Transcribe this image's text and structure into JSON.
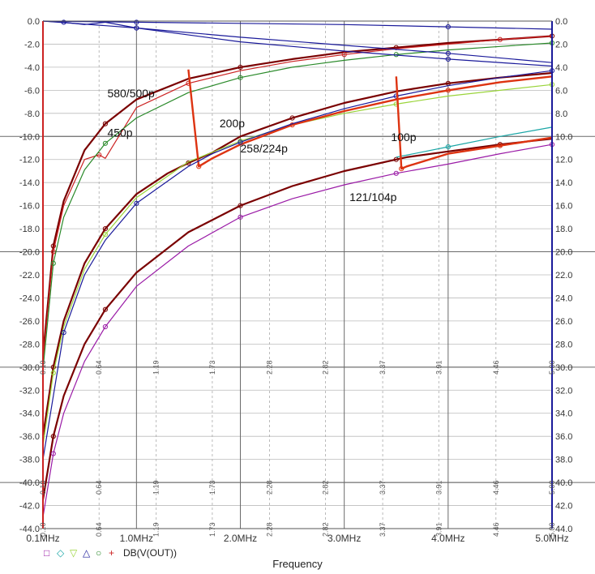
{
  "chart_data": {
    "type": "line",
    "title": "",
    "xlabel": "Frequency",
    "ylabel": "",
    "xlim": [
      0.1,
      5.0
    ],
    "ylim": [
      -44,
      0
    ],
    "x_ticks": [
      "0.1MHz",
      "1.0MHz",
      "2.0MHz",
      "3.0MHz",
      "4.0MHz",
      "5.0MHz"
    ],
    "x_minor_ticks": [
      "0.10",
      "0.64",
      "1.19",
      "1.73",
      "2.28",
      "2.82",
      "3.37",
      "3.91",
      "4.46",
      "5.00"
    ],
    "y_ticks_left": [
      "0.0",
      "-2.0",
      "-4.0",
      "-6.0",
      "-8.0",
      "-10.0",
      "-12.0",
      "-14.0",
      "-16.0",
      "-18.0",
      "-20.0",
      "-22.0",
      "-24.0",
      "-26.0",
      "-28.0",
      "-30.0",
      "-32.0",
      "-34.0",
      "-36.0",
      "-38.0",
      "-40.0",
      "-42.0",
      "-44.0"
    ],
    "y_ticks_right": [
      "0.0",
      "2.0",
      "4.0",
      "6.0",
      "8.0",
      "10.0",
      "12.0",
      "14.0",
      "16.0",
      "18.0",
      "20.0",
      "22.0",
      "24.0",
      "26.0",
      "28.0",
      "30.0",
      "32.0",
      "34.0",
      "36.0",
      "38.0",
      "40.0",
      "42.0",
      "44.0"
    ],
    "legend": {
      "markers": [
        "□",
        "◇",
        "▽",
        "△",
        "○",
        "+"
      ],
      "marker_colors": [
        "#9a1aa6",
        "#1aa6a6",
        "#9ad43a",
        "#1a1a9a",
        "#2a8a2a",
        "#cc2222"
      ],
      "label": "DB(V(OUT))"
    },
    "annotations": [
      {
        "text": "580/500p",
        "x": 0.72,
        "y": -6.6
      },
      {
        "text": "450p",
        "x": 0.72,
        "y": -10.0
      },
      {
        "text": "200p",
        "x": 1.8,
        "y": -9.2
      },
      {
        "text": "258/224p",
        "x": 2.0,
        "y": -11.4
      },
      {
        "text": "100p",
        "x": 3.45,
        "y": -10.4
      },
      {
        "text": "121/104p",
        "x": 3.05,
        "y": -15.6
      }
    ],
    "series": [
      {
        "color": "#7a0000",
        "x": [
          0.1,
          0.2,
          0.3,
          0.5,
          0.7,
          1.0,
          1.5,
          2.0,
          2.5,
          3.0,
          3.5,
          4.0,
          4.5,
          5.0
        ],
        "y": [
          -29.0,
          -19.5,
          -15.6,
          -11.2,
          -8.9,
          -6.8,
          -5.0,
          -4.0,
          -3.3,
          -2.7,
          -2.3,
          -1.9,
          -1.6,
          -1.3
        ]
      },
      {
        "color": "#cc2222",
        "x": [
          0.1,
          0.2,
          0.3,
          0.5,
          0.64,
          0.7,
          1.0,
          1.5,
          2.0,
          2.5,
          3.0,
          3.5,
          4.0,
          4.5,
          5.0
        ],
        "y": [
          -29.5,
          -20.0,
          -16.0,
          -12.0,
          -11.6,
          -11.9,
          -7.5,
          -5.4,
          -4.3,
          -3.5,
          -2.9,
          -2.4,
          -2.0,
          -1.6,
          -1.3
        ]
      },
      {
        "color": "#2a8a2a",
        "x": [
          0.1,
          0.2,
          0.3,
          0.5,
          0.7,
          1.0,
          1.5,
          2.0,
          2.5,
          3.0,
          3.5,
          4.0,
          4.5,
          5.0
        ],
        "y": [
          -30.2,
          -21.0,
          -17.0,
          -12.9,
          -10.6,
          -8.4,
          -6.2,
          -4.9,
          -4.0,
          -3.4,
          -2.9,
          -2.5,
          -2.2,
          -1.9
        ]
      },
      {
        "color": "#7a0000",
        "x": [
          0.1,
          0.2,
          0.3,
          0.5,
          0.7,
          1.0,
          1.3,
          1.5,
          1.73,
          2.0,
          2.5,
          3.0,
          3.5,
          4.0,
          4.5,
          5.0
        ],
        "y": [
          -36.0,
          -30.0,
          -26.0,
          -21.0,
          -18.0,
          -15.0,
          -13.2,
          -12.3,
          -11.4,
          -10.0,
          -8.4,
          -7.1,
          -6.1,
          -5.4,
          -4.9,
          -4.5
        ]
      },
      {
        "color": "#9ad43a",
        "x": [
          0.1,
          0.2,
          0.3,
          0.5,
          0.7,
          1.0,
          1.5,
          2.0,
          2.5,
          3.0,
          3.5,
          4.0,
          4.5,
          5.0
        ],
        "y": [
          -36.8,
          -30.5,
          -26.5,
          -21.5,
          -18.5,
          -15.3,
          -12.2,
          -10.4,
          -9.0,
          -8.0,
          -7.2,
          -6.5,
          -6.0,
          -5.5
        ]
      },
      {
        "color": "#dd3311",
        "x": [
          1.5,
          1.6,
          1.73,
          2.0,
          2.5,
          3.0,
          3.5,
          4.0,
          4.5,
          5.0
        ],
        "y": [
          -4.2,
          -12.6,
          -11.9,
          -10.7,
          -9.0,
          -7.8,
          -6.8,
          -6.0,
          -5.3,
          -4.8
        ]
      },
      {
        "color": "#1a1a9a",
        "x": [
          0.1,
          0.3,
          0.5,
          0.7,
          1.0,
          1.5,
          1.73,
          2.0,
          2.5,
          3.0,
          3.5,
          4.0,
          4.5,
          5.0
        ],
        "y": [
          -38.0,
          -27.0,
          -22.0,
          -19.0,
          -15.8,
          -12.6,
          -11.5,
          -10.5,
          -8.9,
          -7.6,
          -6.5,
          -5.6,
          -4.9,
          -4.3
        ]
      },
      {
        "color": "#7a0000",
        "x": [
          0.1,
          0.2,
          0.3,
          0.5,
          0.7,
          1.0,
          1.5,
          2.0,
          2.5,
          3.0,
          3.5,
          3.6,
          4.0,
          4.5,
          5.0
        ],
        "y": [
          -41.5,
          -36.0,
          -32.5,
          -28.0,
          -25.0,
          -21.8,
          -18.3,
          -16.0,
          -14.3,
          -13.0,
          -12.0,
          -11.8,
          -11.3,
          -10.7,
          -10.2
        ]
      },
      {
        "color": "#1aa6a6",
        "x": [
          3.5,
          4.0,
          4.5,
          5.0
        ],
        "y": [
          -11.8,
          -10.9,
          -10.0,
          -9.2
        ]
      },
      {
        "color": "#dd3311",
        "x": [
          3.5,
          3.55,
          3.6,
          4.0,
          4.5,
          5.0
        ],
        "y": [
          -4.8,
          -12.8,
          -12.6,
          -11.5,
          -10.8,
          -10.1
        ]
      },
      {
        "color": "#9a1aa6",
        "x": [
          0.1,
          0.2,
          0.3,
          0.5,
          0.7,
          1.0,
          1.5,
          2.0,
          2.5,
          3.0,
          3.5,
          4.0,
          4.5,
          5.0
        ],
        "y": [
          -43.0,
          -37.5,
          -34.0,
          -29.5,
          -26.5,
          -23.0,
          -19.5,
          -17.0,
          -15.4,
          -14.2,
          -13.2,
          -12.4,
          -11.5,
          -10.7
        ]
      },
      {
        "color": "#1a1a9a",
        "x": [
          0.1,
          0.3,
          0.5,
          0.7,
          1.0,
          2.0,
          3.0,
          4.0,
          5.0
        ],
        "y": [
          0.0,
          -0.1,
          -0.3,
          -0.1,
          -0.6,
          -1.8,
          -2.6,
          -3.3,
          -3.9
        ]
      },
      {
        "color": "#1a1a9a",
        "x": [
          0.1,
          1.0,
          2.0,
          3.0,
          4.0,
          5.0
        ],
        "y": [
          0.0,
          -0.1,
          -0.2,
          -0.3,
          -0.5,
          -0.7
        ]
      },
      {
        "color": "#1a1a9a",
        "x": [
          0.1,
          1.0,
          2.0,
          3.0,
          4.0,
          5.0
        ],
        "y": [
          0.0,
          -0.6,
          -1.4,
          -2.1,
          -2.8,
          -3.6
        ]
      }
    ]
  }
}
